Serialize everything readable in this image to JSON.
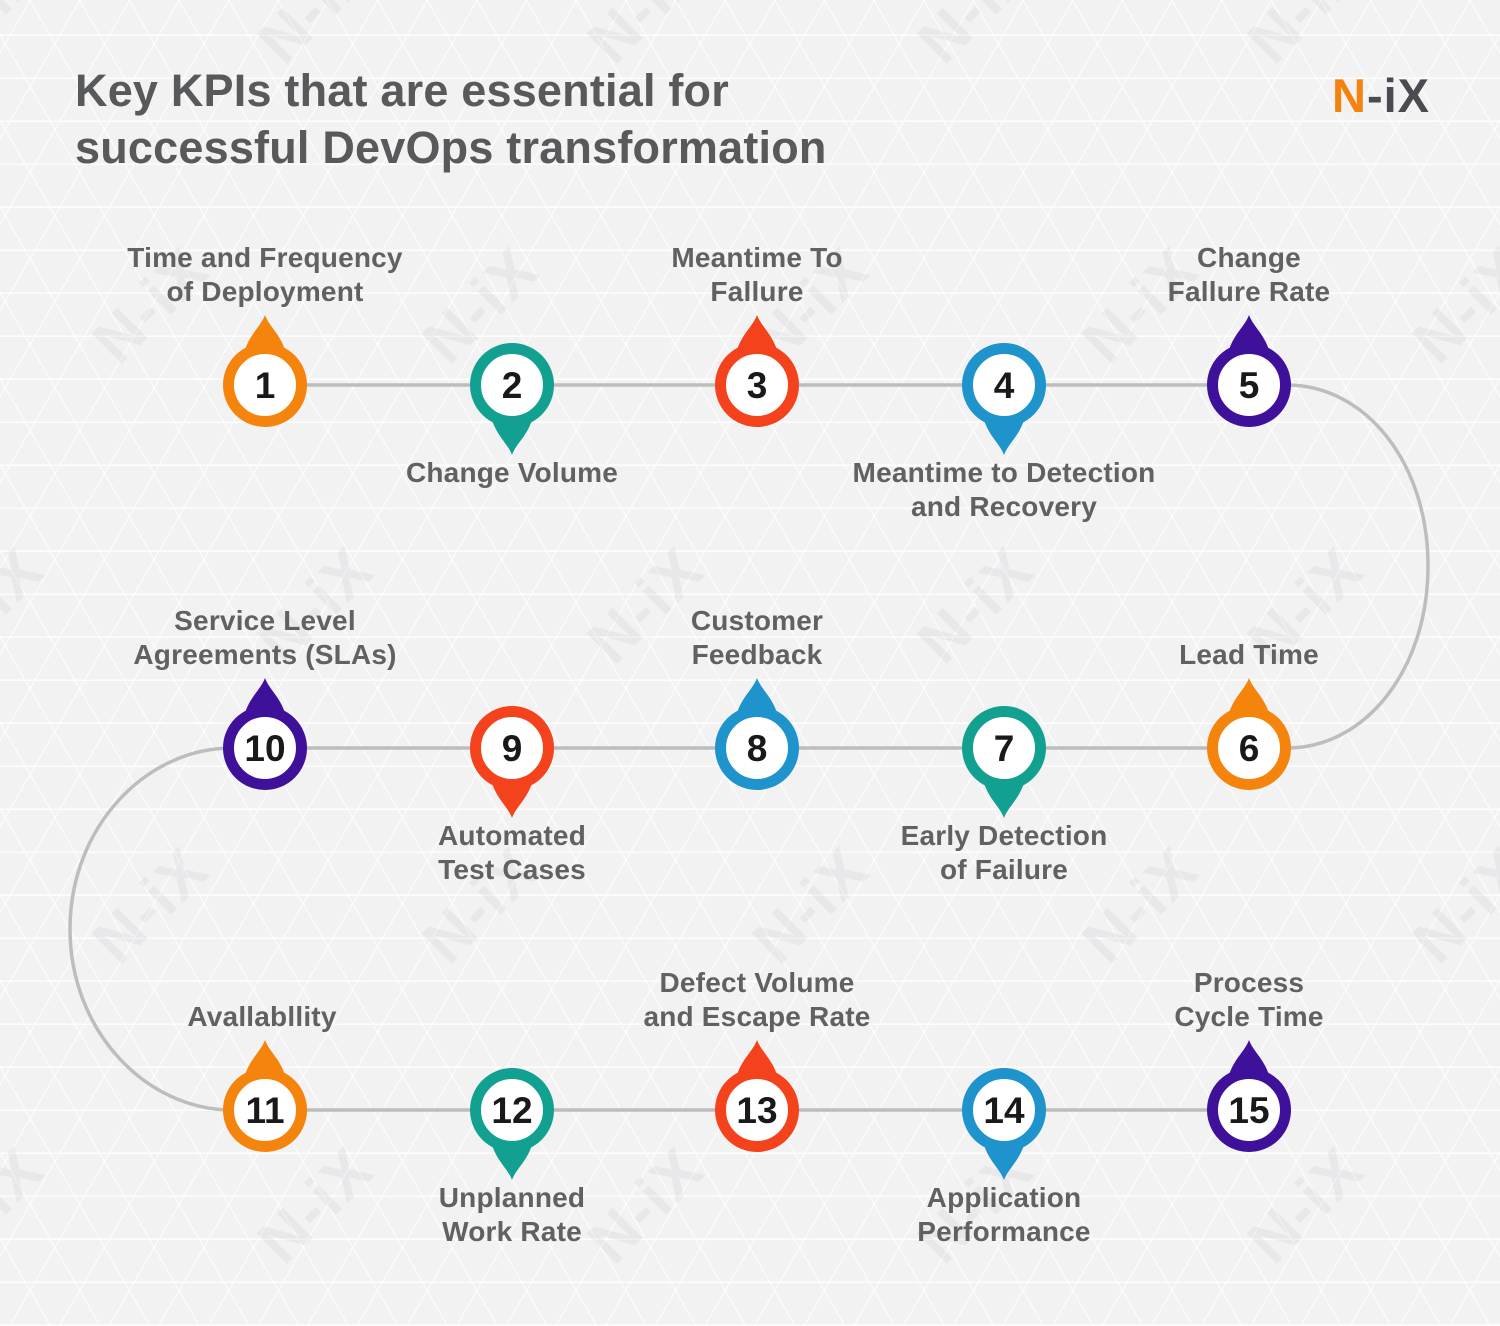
{
  "title": {
    "text": "Key KPIs that are essential for\nsuccessful DevOps transformation"
  },
  "logo": {
    "accent": "N",
    "rest": "-iX"
  },
  "watermark_text": "N-iX",
  "colors": {
    "background": "#f2f2f3",
    "title_text": "#58595b",
    "label_text": "#616161",
    "connector_line": "#bdbdbd",
    "logo_accent": "#f5820d",
    "logo_dark": "#4a4b50",
    "orange": "#f5840d",
    "teal": "#12a091",
    "red": "#f4431c",
    "blue": "#1f93cc",
    "purple": "#3f119b"
  },
  "kpis": [
    {
      "number": "1",
      "label": "Time and Frequency\nof Deployment",
      "color": "orange",
      "label_position": "above"
    },
    {
      "number": "2",
      "label": "Change Volume",
      "color": "teal",
      "label_position": "below"
    },
    {
      "number": "3",
      "label": "Meantime To\nFallure",
      "color": "red",
      "label_position": "above"
    },
    {
      "number": "4",
      "label": "Meantime to Detection\nand Recovery",
      "color": "blue",
      "label_position": "below"
    },
    {
      "number": "5",
      "label": "Change\nFallure Rate",
      "color": "purple",
      "label_position": "above"
    },
    {
      "number": "6",
      "label": "Lead Time",
      "color": "orange",
      "label_position": "above"
    },
    {
      "number": "7",
      "label": "Early Detection\nof Failure",
      "color": "teal",
      "label_position": "below"
    },
    {
      "number": "8",
      "label": "Customer\nFeedback",
      "color": "blue",
      "label_position": "above"
    },
    {
      "number": "9",
      "label": "Automated\nTest Cases",
      "color": "red",
      "label_position": "below"
    },
    {
      "number": "10",
      "label": "Service Level\nAgreements (SLAs)",
      "color": "purple",
      "label_position": "above"
    },
    {
      "number": "11",
      "label": "Avallabllity",
      "color": "orange",
      "label_position": "above"
    },
    {
      "number": "12",
      "label": "Unplanned\nWork Rate",
      "color": "teal",
      "label_position": "below"
    },
    {
      "number": "13",
      "label": "Defect Volume\nand Escape Rate",
      "color": "red",
      "label_position": "above"
    },
    {
      "number": "14",
      "label": "Application\nPerformance",
      "color": "blue",
      "label_position": "below"
    },
    {
      "number": "15",
      "label": "Process\nCycle Time",
      "color": "purple",
      "label_position": "above"
    }
  ]
}
